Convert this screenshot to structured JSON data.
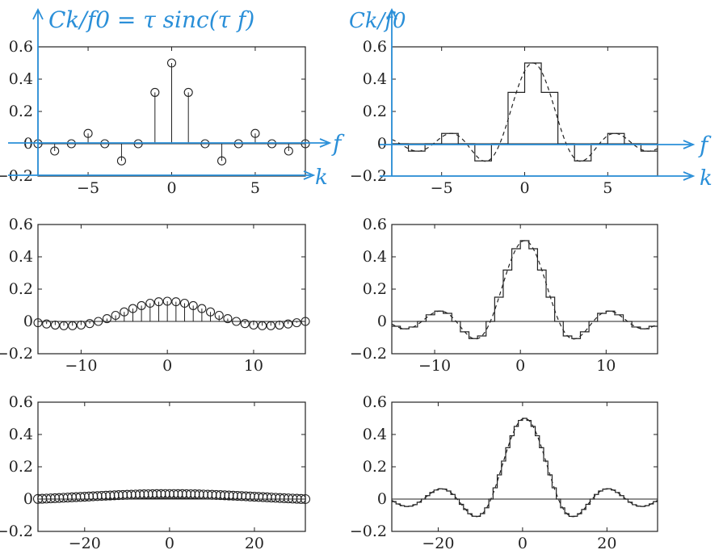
{
  "annotations": {
    "left_formula": "Ck/f0 = τ sinc(τ f)",
    "right_label": "Ck/f0",
    "axis_f": "f",
    "axis_k": "k",
    "color": "#2a8fd8"
  },
  "colors": {
    "ink": "#222222",
    "annotation": "#2a8fd8"
  },
  "chart_data": [
    {
      "type": "stem",
      "panel": "top-left",
      "tau": 0.5,
      "T": 1,
      "xlim": [
        -8,
        8
      ],
      "ylim": [
        -0.2,
        0.6
      ],
      "xticks": [
        -5,
        0,
        5
      ],
      "yticks": [
        -0.2,
        0,
        0.2,
        0.4,
        0.6
      ],
      "xticklabels": [
        "−5",
        "0",
        "5"
      ],
      "yticklabels": [
        "−0.2",
        "0",
        "0.2",
        "0.4",
        "0.6"
      ],
      "k": [
        -8,
        -7,
        -6,
        -5,
        -4,
        -3,
        -2,
        -1,
        0,
        1,
        2,
        3,
        4,
        5,
        6,
        7,
        8
      ],
      "values": [
        0.0,
        -0.045,
        0.0,
        0.064,
        0.0,
        -0.106,
        0.0,
        0.318,
        0.5,
        0.318,
        0.0,
        -0.106,
        0.0,
        0.064,
        0.0,
        -0.045,
        0.0
      ]
    },
    {
      "type": "staircase",
      "panel": "top-right",
      "tau": 0.5,
      "T": 1,
      "xlim": [
        -8,
        8
      ],
      "ylim": [
        -0.2,
        0.6
      ],
      "xticks": [
        -5,
        0,
        5
      ],
      "yticks": [
        -0.2,
        0,
        0.2,
        0.4,
        0.6
      ],
      "xticklabels": [
        "−5",
        "0",
        "5"
      ],
      "yticklabels": [
        "−0.2",
        "0",
        "0.2",
        "0.4",
        "0.6"
      ],
      "series": [
        {
          "style": "solid staircase"
        },
        {
          "style": "dashed envelope"
        }
      ]
    },
    {
      "type": "stem",
      "panel": "middle-left",
      "tau": 0.25,
      "T": 2,
      "xlim": [
        -15,
        16
      ],
      "ylim": [
        -0.2,
        0.6
      ],
      "xticks": [
        -10,
        0,
        10
      ],
      "yticks": [
        -0.2,
        0,
        0.2,
        0.4,
        0.6
      ],
      "xticklabels": [
        "−10",
        "0",
        "10"
      ],
      "yticklabels": [
        "−0.2",
        "0",
        "0.2",
        "0.4",
        "0.6"
      ]
    },
    {
      "type": "staircase",
      "panel": "middle-right",
      "tau": 0.5,
      "T": 2,
      "xlim": [
        -15,
        16
      ],
      "ylim": [
        -0.2,
        0.6
      ],
      "xticks": [
        -10,
        0,
        10
      ],
      "yticks": [
        -0.2,
        0,
        0.2,
        0.4,
        0.6
      ],
      "xticklabels": [
        "−10",
        "0",
        "10"
      ],
      "yticklabels": [
        "−0.2",
        "0",
        "0.2",
        "0.4",
        "0.6"
      ]
    },
    {
      "type": "stem",
      "panel": "bottom-left",
      "tau": 0.125,
      "T": 4,
      "xlim": [
        -31,
        32
      ],
      "ylim": [
        -0.2,
        0.6
      ],
      "xticks": [
        -20,
        0,
        20
      ],
      "yticks": [
        -0.2,
        0,
        0.2,
        0.4,
        0.6
      ],
      "xticklabels": [
        "−20",
        "0",
        "20"
      ],
      "yticklabels": [
        "−0.2",
        "0",
        "0.2",
        "0.4",
        "0.6"
      ]
    },
    {
      "type": "staircase",
      "panel": "bottom-right",
      "tau": 0.5,
      "T": 4,
      "xlim": [
        -31,
        32
      ],
      "ylim": [
        -0.2,
        0.6
      ],
      "xticks": [
        -20,
        0,
        20
      ],
      "yticks": [
        -0.2,
        0,
        0.2,
        0.4,
        0.6
      ],
      "xticklabels": [
        "−20",
        "0",
        "20"
      ],
      "yticklabels": [
        "−0.2",
        "0",
        "0.2",
        "0.4",
        "0.6"
      ]
    }
  ]
}
